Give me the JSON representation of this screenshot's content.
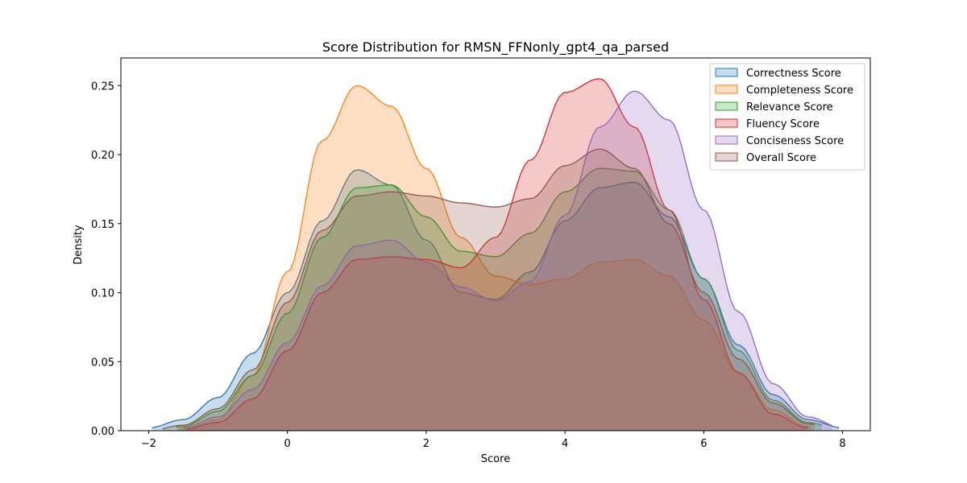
{
  "chart_data": {
    "type": "area",
    "title": "Score Distribution for RMSN_FFNonly_gpt4_qa_parsed",
    "xlabel": "Score",
    "ylabel": "Density",
    "xlim": [
      -2.4,
      8.4
    ],
    "ylim": [
      0,
      0.27
    ],
    "xticks": [
      -2,
      0,
      2,
      4,
      6,
      8
    ],
    "yticks": [
      0.0,
      0.05,
      0.1,
      0.15,
      0.2,
      0.25
    ],
    "grid": false,
    "legend_position": "top-right",
    "x": [
      -2,
      -1.5,
      -1,
      -0.5,
      0,
      0.5,
      1,
      1.5,
      2,
      2.5,
      3,
      3.5,
      4,
      4.5,
      5,
      5.5,
      6,
      6.5,
      7,
      7.5,
      8
    ],
    "series": [
      {
        "name": "Correctness Score",
        "color": "#1f77b4",
        "x_range": [
          -1.95,
          7.95
        ],
        "values": [
          0.002,
          0.008,
          0.024,
          0.056,
          0.1,
          0.152,
          0.189,
          0.178,
          0.138,
          0.1,
          0.095,
          0.115,
          0.152,
          0.176,
          0.18,
          0.155,
          0.11,
          0.062,
          0.026,
          0.008,
          0.002
        ]
      },
      {
        "name": "Completeness Score",
        "color": "#ff7f0e",
        "x_range": [
          -1.55,
          7.55
        ],
        "values": [
          0.0,
          0.001,
          0.008,
          0.04,
          0.115,
          0.21,
          0.25,
          0.235,
          0.19,
          0.14,
          0.112,
          0.106,
          0.11,
          0.122,
          0.124,
          0.112,
          0.08,
          0.042,
          0.015,
          0.003,
          0.0
        ]
      },
      {
        "name": "Relevance Score",
        "color": "#2ca02c",
        "x_range": [
          -1.6,
          7.7
        ],
        "values": [
          0.0,
          0.003,
          0.014,
          0.04,
          0.085,
          0.14,
          0.176,
          0.178,
          0.155,
          0.13,
          0.126,
          0.143,
          0.173,
          0.19,
          0.188,
          0.16,
          0.11,
          0.058,
          0.022,
          0.006,
          0.0
        ]
      },
      {
        "name": "Fluency Score",
        "color": "#d62728",
        "x_range": [
          -1.45,
          7.5
        ],
        "values": [
          0.0,
          0.001,
          0.006,
          0.023,
          0.058,
          0.1,
          0.124,
          0.126,
          0.124,
          0.118,
          0.14,
          0.196,
          0.245,
          0.255,
          0.22,
          0.16,
          0.095,
          0.042,
          0.012,
          0.002,
          0.0
        ]
      },
      {
        "name": "Conciseness Score",
        "color": "#9467bd",
        "x_range": [
          -1.5,
          7.85
        ],
        "values": [
          0.0,
          0.002,
          0.01,
          0.03,
          0.064,
          0.105,
          0.134,
          0.138,
          0.122,
          0.104,
          0.094,
          0.108,
          0.156,
          0.22,
          0.246,
          0.225,
          0.16,
          0.086,
          0.034,
          0.01,
          0.002
        ]
      },
      {
        "name": "Overall Score",
        "color": "#8c564b",
        "x_range": [
          -1.8,
          7.6
        ],
        "values": [
          0.0,
          0.004,
          0.016,
          0.044,
          0.093,
          0.145,
          0.17,
          0.173,
          0.17,
          0.165,
          0.162,
          0.168,
          0.192,
          0.204,
          0.19,
          0.15,
          0.1,
          0.052,
          0.02,
          0.005,
          0.0
        ]
      }
    ]
  }
}
